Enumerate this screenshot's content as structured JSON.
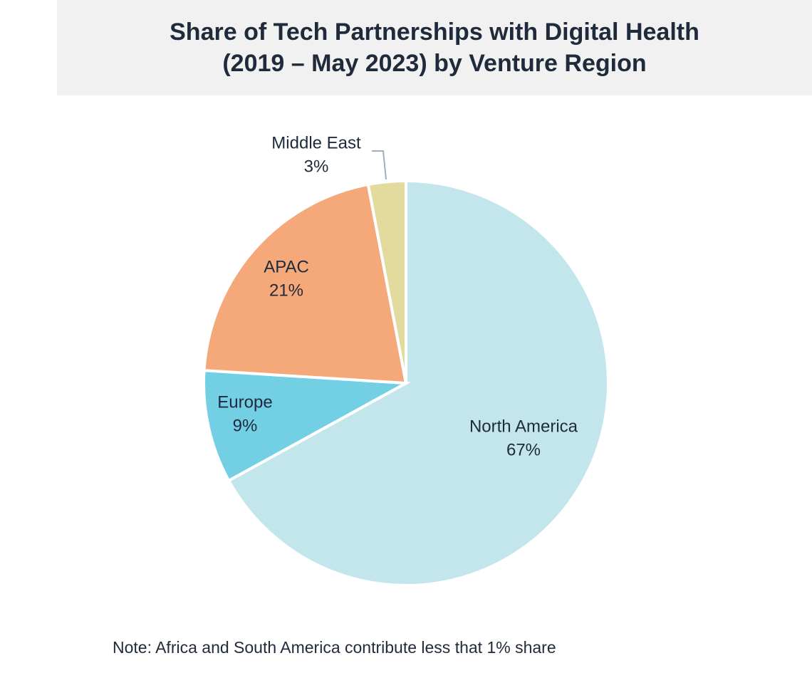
{
  "chart_data": {
    "type": "pie",
    "title_line1": "Share of Tech Partnerships with Digital Health",
    "title_line2": "(2019 – May 2023) by Venture Region",
    "slices": [
      {
        "label": "North America",
        "value": 67,
        "value_label": "67%",
        "color": "#c2e6ec"
      },
      {
        "label": "Europe",
        "value": 9,
        "value_label": "9%",
        "color": "#72cfe4"
      },
      {
        "label": "APAC",
        "value": 21,
        "value_label": "21%",
        "color": "#f5a97b"
      },
      {
        "label": "Middle East",
        "value": 3,
        "value_label": "3%",
        "color": "#e3da9e"
      }
    ],
    "start_angle": "12 o'clock",
    "direction": "clockwise",
    "note": "Note: Africa and South America contribute less that 1% share"
  }
}
